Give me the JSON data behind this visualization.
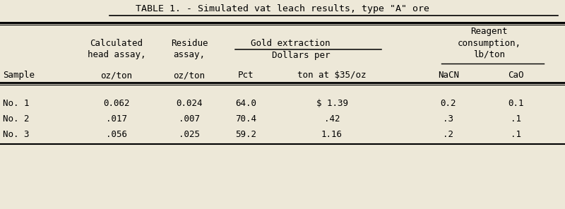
{
  "title": "TABLE 1. - Simulated vat leach results, type \"A\" ore",
  "bg_color": "#ede8d8",
  "data_rows": [
    [
      "No. 1",
      "0.062",
      "0.024",
      "64.0",
      "$ 1.39",
      "0.2",
      "0.1"
    ],
    [
      "No. 2",
      ".017",
      ".007",
      "70.4",
      ".42",
      ".3",
      ".1"
    ],
    [
      "No. 3",
      ".056",
      ".025",
      "59.2",
      "1.16",
      ".2",
      ".1"
    ]
  ],
  "font_size": 9.0,
  "title_font_size": 9.5,
  "font_family": "DejaVu Sans Mono"
}
